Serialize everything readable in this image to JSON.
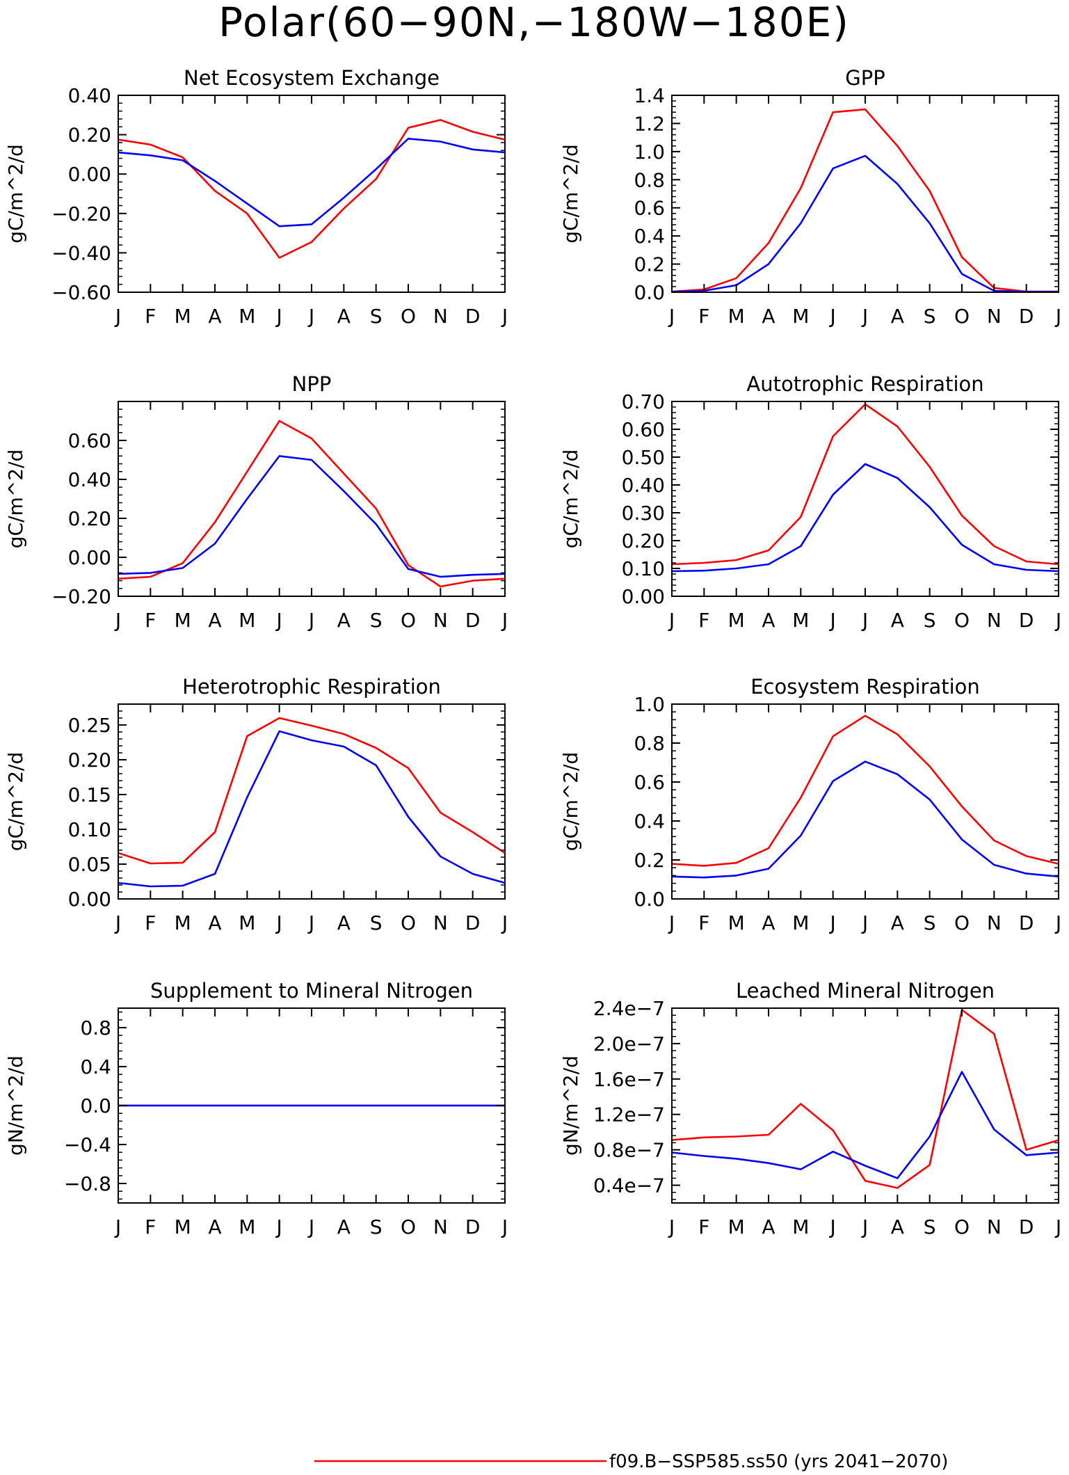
{
  "title": "Polar(60−90N,−180W−180E)",
  "months": [
    "J",
    "F",
    "M",
    "A",
    "M",
    "J",
    "J",
    "A",
    "S",
    "O",
    "N",
    "D",
    "J"
  ],
  "legend": [
    {
      "label": "f09.B−SSP585.ss50 (yrs 2041−2070)",
      "color": "#ff0000"
    }
  ],
  "colors": {
    "series_a": "#ff0000",
    "series_b": "#0000ff"
  },
  "chart_data": [
    {
      "type": "line",
      "title": "Net Ecosystem Exchange",
      "ylabel": "gC/m^2/d",
      "ylim": [
        -0.6,
        0.4
      ],
      "yticks": [
        -0.6,
        -0.4,
        -0.2,
        0.0,
        0.2,
        0.4
      ],
      "ytick_labels": [
        "−0.60",
        "−0.40",
        "−0.20",
        "0.00",
        "0.20",
        "0.40"
      ],
      "series": [
        {
          "color": "#ff0000",
          "values": [
            0.175,
            0.15,
            0.085,
            -0.085,
            -0.2,
            -0.425,
            -0.345,
            -0.175,
            -0.025,
            0.235,
            0.275,
            0.215,
            0.175
          ]
        },
        {
          "color": "#0000ff",
          "values": [
            0.11,
            0.095,
            0.07,
            -0.035,
            -0.15,
            -0.265,
            -0.255,
            -0.12,
            0.025,
            0.18,
            0.165,
            0.125,
            0.11
          ]
        }
      ]
    },
    {
      "type": "line",
      "title": "GPP",
      "ylabel": "gC/m^2/d",
      "ylim": [
        0,
        1.4
      ],
      "yticks": [
        0,
        0.2,
        0.4,
        0.6,
        0.8,
        1.0,
        1.2,
        1.4
      ],
      "ytick_labels": [
        "0.0",
        "0.2",
        "0.4",
        "0.6",
        "0.8",
        "1.0",
        "1.2",
        "1.4"
      ],
      "series": [
        {
          "color": "#ff0000",
          "values": [
            0.005,
            0.02,
            0.1,
            0.35,
            0.74,
            1.28,
            1.3,
            1.04,
            0.72,
            0.25,
            0.03,
            0.005,
            0.005
          ]
        },
        {
          "color": "#0000ff",
          "values": [
            0.003,
            0.01,
            0.05,
            0.2,
            0.49,
            0.88,
            0.97,
            0.77,
            0.49,
            0.13,
            0.01,
            0.003,
            0.003
          ]
        }
      ]
    },
    {
      "type": "line",
      "title": "NPP",
      "ylabel": "gC/m^2/d",
      "ylim": [
        -0.2,
        0.8
      ],
      "yticks": [
        -0.2,
        0.0,
        0.2,
        0.4,
        0.6
      ],
      "ytick_labels": [
        "−0.20",
        "0.00",
        "0.20",
        "0.40",
        "0.60"
      ],
      "series": [
        {
          "color": "#ff0000",
          "values": [
            -0.11,
            -0.1,
            -0.03,
            0.18,
            0.44,
            0.7,
            0.61,
            0.43,
            0.25,
            -0.04,
            -0.15,
            -0.12,
            -0.11
          ]
        },
        {
          "color": "#0000ff",
          "values": [
            -0.085,
            -0.08,
            -0.055,
            0.07,
            0.3,
            0.52,
            0.5,
            0.34,
            0.17,
            -0.06,
            -0.1,
            -0.09,
            -0.085
          ]
        }
      ]
    },
    {
      "type": "line",
      "title": "Autotrophic Respiration",
      "ylabel": "gC/m^2/d",
      "ylim": [
        0,
        0.7
      ],
      "yticks": [
        0,
        0.1,
        0.2,
        0.3,
        0.4,
        0.5,
        0.6,
        0.7
      ],
      "ytick_labels": [
        "0.00",
        "0.10",
        "0.20",
        "0.30",
        "0.40",
        "0.50",
        "0.60",
        "0.70"
      ],
      "series": [
        {
          "color": "#ff0000",
          "values": [
            0.115,
            0.12,
            0.13,
            0.165,
            0.285,
            0.575,
            0.69,
            0.61,
            0.465,
            0.29,
            0.18,
            0.125,
            0.115
          ]
        },
        {
          "color": "#0000ff",
          "values": [
            0.09,
            0.092,
            0.1,
            0.115,
            0.18,
            0.365,
            0.475,
            0.425,
            0.32,
            0.185,
            0.115,
            0.095,
            0.09
          ]
        }
      ]
    },
    {
      "type": "line",
      "title": "Heterotrophic Respiration",
      "ylabel": "gC/m^2/d",
      "ylim": [
        0,
        0.28
      ],
      "yticks": [
        0,
        0.05,
        0.1,
        0.15,
        0.2,
        0.25
      ],
      "ytick_labels": [
        "0.00",
        "0.05",
        "0.10",
        "0.15",
        "0.20",
        "0.25"
      ],
      "series": [
        {
          "color": "#ff0000",
          "values": [
            0.066,
            0.051,
            0.052,
            0.096,
            0.234,
            0.26,
            0.249,
            0.237,
            0.217,
            0.188,
            0.124,
            0.096,
            0.066
          ]
        },
        {
          "color": "#0000ff",
          "values": [
            0.023,
            0.018,
            0.019,
            0.036,
            0.146,
            0.241,
            0.228,
            0.219,
            0.192,
            0.118,
            0.061,
            0.036,
            0.023
          ]
        }
      ]
    },
    {
      "type": "line",
      "title": "Ecosystem Respiration",
      "ylabel": "gC/m^2/d",
      "ylim": [
        0,
        1.0
      ],
      "yticks": [
        0,
        0.2,
        0.4,
        0.6,
        0.8,
        1.0
      ],
      "ytick_labels": [
        "0.0",
        "0.2",
        "0.4",
        "0.6",
        "0.8",
        "1.0"
      ],
      "series": [
        {
          "color": "#ff0000",
          "values": [
            0.18,
            0.17,
            0.185,
            0.26,
            0.52,
            0.835,
            0.94,
            0.845,
            0.68,
            0.475,
            0.3,
            0.22,
            0.18
          ]
        },
        {
          "color": "#0000ff",
          "values": [
            0.115,
            0.11,
            0.12,
            0.155,
            0.325,
            0.605,
            0.705,
            0.64,
            0.51,
            0.305,
            0.175,
            0.13,
            0.115
          ]
        }
      ]
    },
    {
      "type": "line",
      "title": "Supplement to Mineral Nitrogen",
      "ylabel": "gN/m^2/d",
      "ylim": [
        -1.0,
        1.0
      ],
      "yticks": [
        -0.8,
        -0.4,
        0.0,
        0.4,
        0.8
      ],
      "ytick_labels": [
        "−0.8",
        "−0.4",
        "0.0",
        "0.4",
        "0.8"
      ],
      "series": [
        {
          "color": "#ff0000",
          "values": [
            0,
            0,
            0,
            0,
            0,
            0,
            0,
            0,
            0,
            0,
            0,
            0,
            0
          ]
        },
        {
          "color": "#0000ff",
          "values": [
            0,
            0,
            0,
            0,
            0,
            0,
            0,
            0,
            0,
            0,
            0,
            0,
            0
          ]
        }
      ]
    },
    {
      "type": "line",
      "title": "Leached Mineral Nitrogen",
      "ylabel": "gN/m^2/d",
      "ylim": [
        2e-08,
        2.4e-07
      ],
      "yticks": [
        4e-08,
        8e-08,
        1.2e-07,
        1.6e-07,
        2e-07,
        2.4e-07
      ],
      "ytick_labels": [
        "0.4e−7",
        "0.8e−7",
        "1.2e−7",
        "1.6e−7",
        "2.0e−7",
        "2.4e−7"
      ],
      "series": [
        {
          "color": "#ff0000",
          "values": [
            9.1e-08,
            9.4e-08,
            9.5e-08,
            9.7e-08,
            1.32e-07,
            1.02e-07,
            4.5e-08,
            3.7e-08,
            6.3e-08,
            2.38e-07,
            2.11e-07,
            8e-08,
            9.1e-08
          ]
        },
        {
          "color": "#0000ff",
          "values": [
            7.7e-08,
            7.3e-08,
            7e-08,
            6.5e-08,
            5.8e-08,
            7.8e-08,
            6.2e-08,
            4.8e-08,
            9.5e-08,
            1.68e-07,
            1.03e-07,
            7.4e-08,
            7.7e-08
          ]
        }
      ]
    }
  ]
}
